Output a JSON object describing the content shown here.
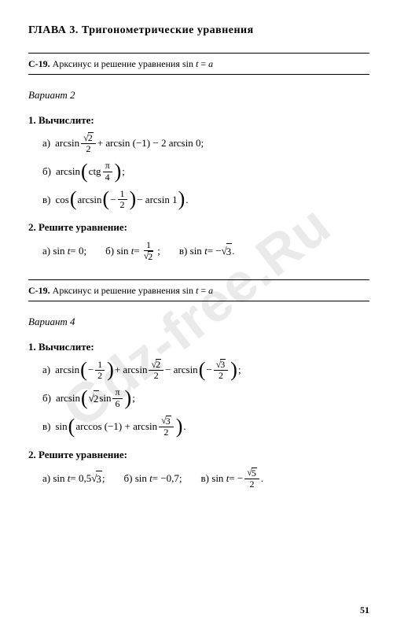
{
  "watermark": "Gdz-free.Ru",
  "page_number": "51",
  "chapter": {
    "label": "ГЛАВА 3.",
    "title": "Тригонометрические уравнения"
  },
  "sections": [
    {
      "header_code": "С-19.",
      "header_text": "Арксинус и решение уравнения sin",
      "header_var": "t",
      "header_eq": "=",
      "header_rhs": "a",
      "variant": "Вариант 2",
      "p1_title": "1. Вычислите:",
      "p1a_label": "а)",
      "p1a_pre": "arcsin",
      "p1a_num": "2",
      "p1a_den": "2",
      "p1a_mid": " + arcsin (−1) − 2 arcsin 0;",
      "p1b_label": "б)",
      "p1b_pre": "arcsin",
      "p1b_in": "ctg",
      "p1b_num": "π",
      "p1b_den": "4",
      "p1b_end": ";",
      "p1c_label": "в)",
      "p1c_pre": "cos",
      "p1c_in": "arcsin",
      "p1c_neg": "−",
      "p1c_num": "1",
      "p1c_den": "2",
      "p1c_mid": " − arcsin 1",
      "p1c_end": ".",
      "p2_title": "2. Решите уравнение:",
      "p2a_label": "а)",
      "p2a": "sin",
      "p2a_var": "t",
      "p2a_eq": " = 0;",
      "p2b_label": "б)",
      "p2b": "sin",
      "p2b_var": "t",
      "p2b_eq": " =",
      "p2b_num": "1",
      "p2b_den": "2",
      "p2b_end": ";",
      "p2c_label": "в)",
      "p2c": "sin",
      "p2c_var": "t",
      "p2c_eq": " = −",
      "p2c_rad": "3",
      "p2c_end": "."
    },
    {
      "header_code": "С-19.",
      "header_text": "Арксинус и решение уравнения sin",
      "header_var": "t",
      "header_eq": "=",
      "header_rhs": "a",
      "variant": "Вариант 4",
      "p1_title": "1. Вычислите:",
      "p1a_label": "а)",
      "p1a_pre": "arcsin",
      "p1a_neg": "−",
      "p1a_num": "1",
      "p1a_den": "2",
      "p1a_mid": " + arcsin",
      "p1a_num2": "2",
      "p1a_den2": "2",
      "p1a_mid2": " − arcsin",
      "p1a_neg3": "−",
      "p1a_num3": "3",
      "p1a_den3": "2",
      "p1a_end": ";",
      "p1b_label": "б)",
      "p1b_pre": "arcsin",
      "p1b_rad": "2",
      "p1b_mid": " sin",
      "p1b_num": "π",
      "p1b_den": "6",
      "p1b_end": ";",
      "p1c_label": "в)",
      "p1c_pre": "sin",
      "p1c_in": "arccos (−1) + arcsin",
      "p1c_num": "3",
      "p1c_den": "2",
      "p1c_end": ".",
      "p2_title": "2. Решите уравнение:",
      "p2a_label": "а)",
      "p2a": "sin",
      "p2a_var": "t",
      "p2a_eq": " = 0,5",
      "p2a_rad": "3",
      "p2a_end": ";",
      "p2b_label": "б)",
      "p2b": "sin",
      "p2b_var": "t",
      "p2b_eq": " = −0,7;",
      "p2c_label": "в)",
      "p2c": "sin",
      "p2c_var": "t",
      "p2c_eq": " = −",
      "p2c_num": "5",
      "p2c_den": "2",
      "p2c_end": "."
    }
  ]
}
